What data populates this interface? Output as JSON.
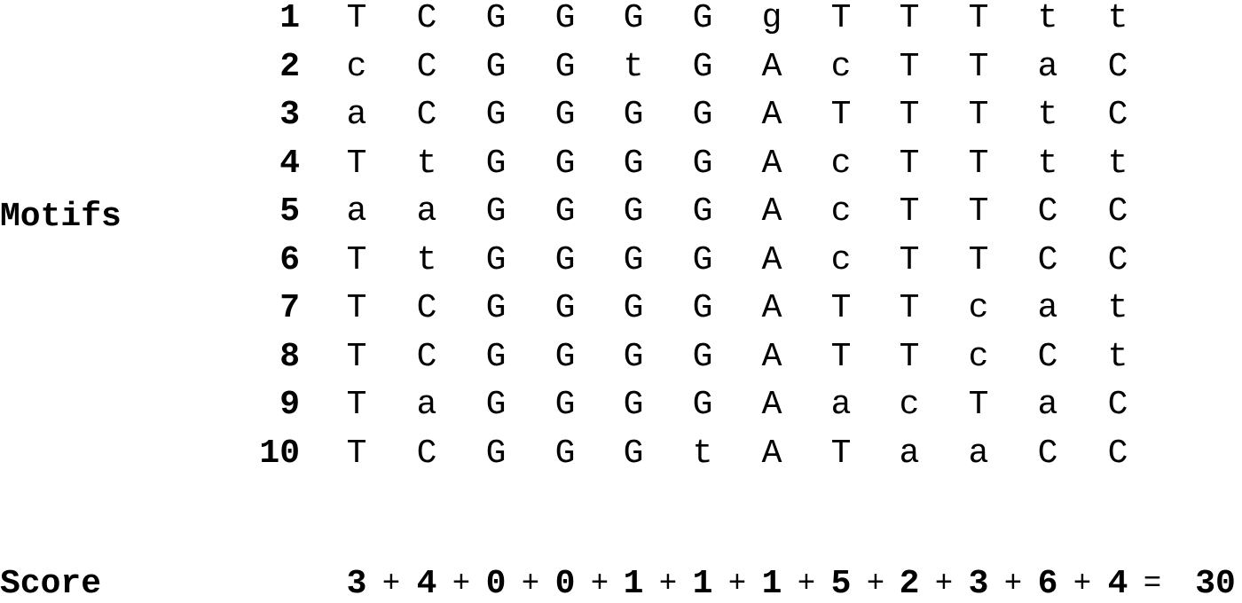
{
  "labels": {
    "motifs": "Motifs",
    "score": "Score"
  },
  "rows": [
    {
      "num": "1",
      "bases": [
        "T",
        "C",
        "G",
        "G",
        "G",
        "G",
        "g",
        "T",
        "T",
        "T",
        "t",
        "t"
      ]
    },
    {
      "num": "2",
      "bases": [
        "c",
        "C",
        "G",
        "G",
        "t",
        "G",
        "A",
        "c",
        "T",
        "T",
        "a",
        "C"
      ]
    },
    {
      "num": "3",
      "bases": [
        "a",
        "C",
        "G",
        "G",
        "G",
        "G",
        "A",
        "T",
        "T",
        "T",
        "t",
        "C"
      ]
    },
    {
      "num": "4",
      "bases": [
        "T",
        "t",
        "G",
        "G",
        "G",
        "G",
        "A",
        "c",
        "T",
        "T",
        "t",
        "t"
      ]
    },
    {
      "num": "5",
      "bases": [
        "a",
        "a",
        "G",
        "G",
        "G",
        "G",
        "A",
        "c",
        "T",
        "T",
        "C",
        "C"
      ]
    },
    {
      "num": "6",
      "bases": [
        "T",
        "t",
        "G",
        "G",
        "G",
        "G",
        "A",
        "c",
        "T",
        "T",
        "C",
        "C"
      ]
    },
    {
      "num": "7",
      "bases": [
        "T",
        "C",
        "G",
        "G",
        "G",
        "G",
        "A",
        "T",
        "T",
        "c",
        "a",
        "t"
      ]
    },
    {
      "num": "8",
      "bases": [
        "T",
        "C",
        "G",
        "G",
        "G",
        "G",
        "A",
        "T",
        "T",
        "c",
        "C",
        "t"
      ]
    },
    {
      "num": "9",
      "bases": [
        "T",
        "a",
        "G",
        "G",
        "G",
        "G",
        "A",
        "a",
        "c",
        "T",
        "a",
        "C"
      ]
    },
    {
      "num": "10",
      "bases": [
        "T",
        "C",
        "G",
        "G",
        "G",
        "t",
        "A",
        "T",
        "a",
        "a",
        "C",
        "C"
      ]
    }
  ],
  "score": {
    "terms": [
      "3",
      "4",
      "0",
      "0",
      "1",
      "1",
      "1",
      "5",
      "2",
      "3",
      "6",
      "4"
    ],
    "plus": "+",
    "equals": "=",
    "total": "30"
  }
}
